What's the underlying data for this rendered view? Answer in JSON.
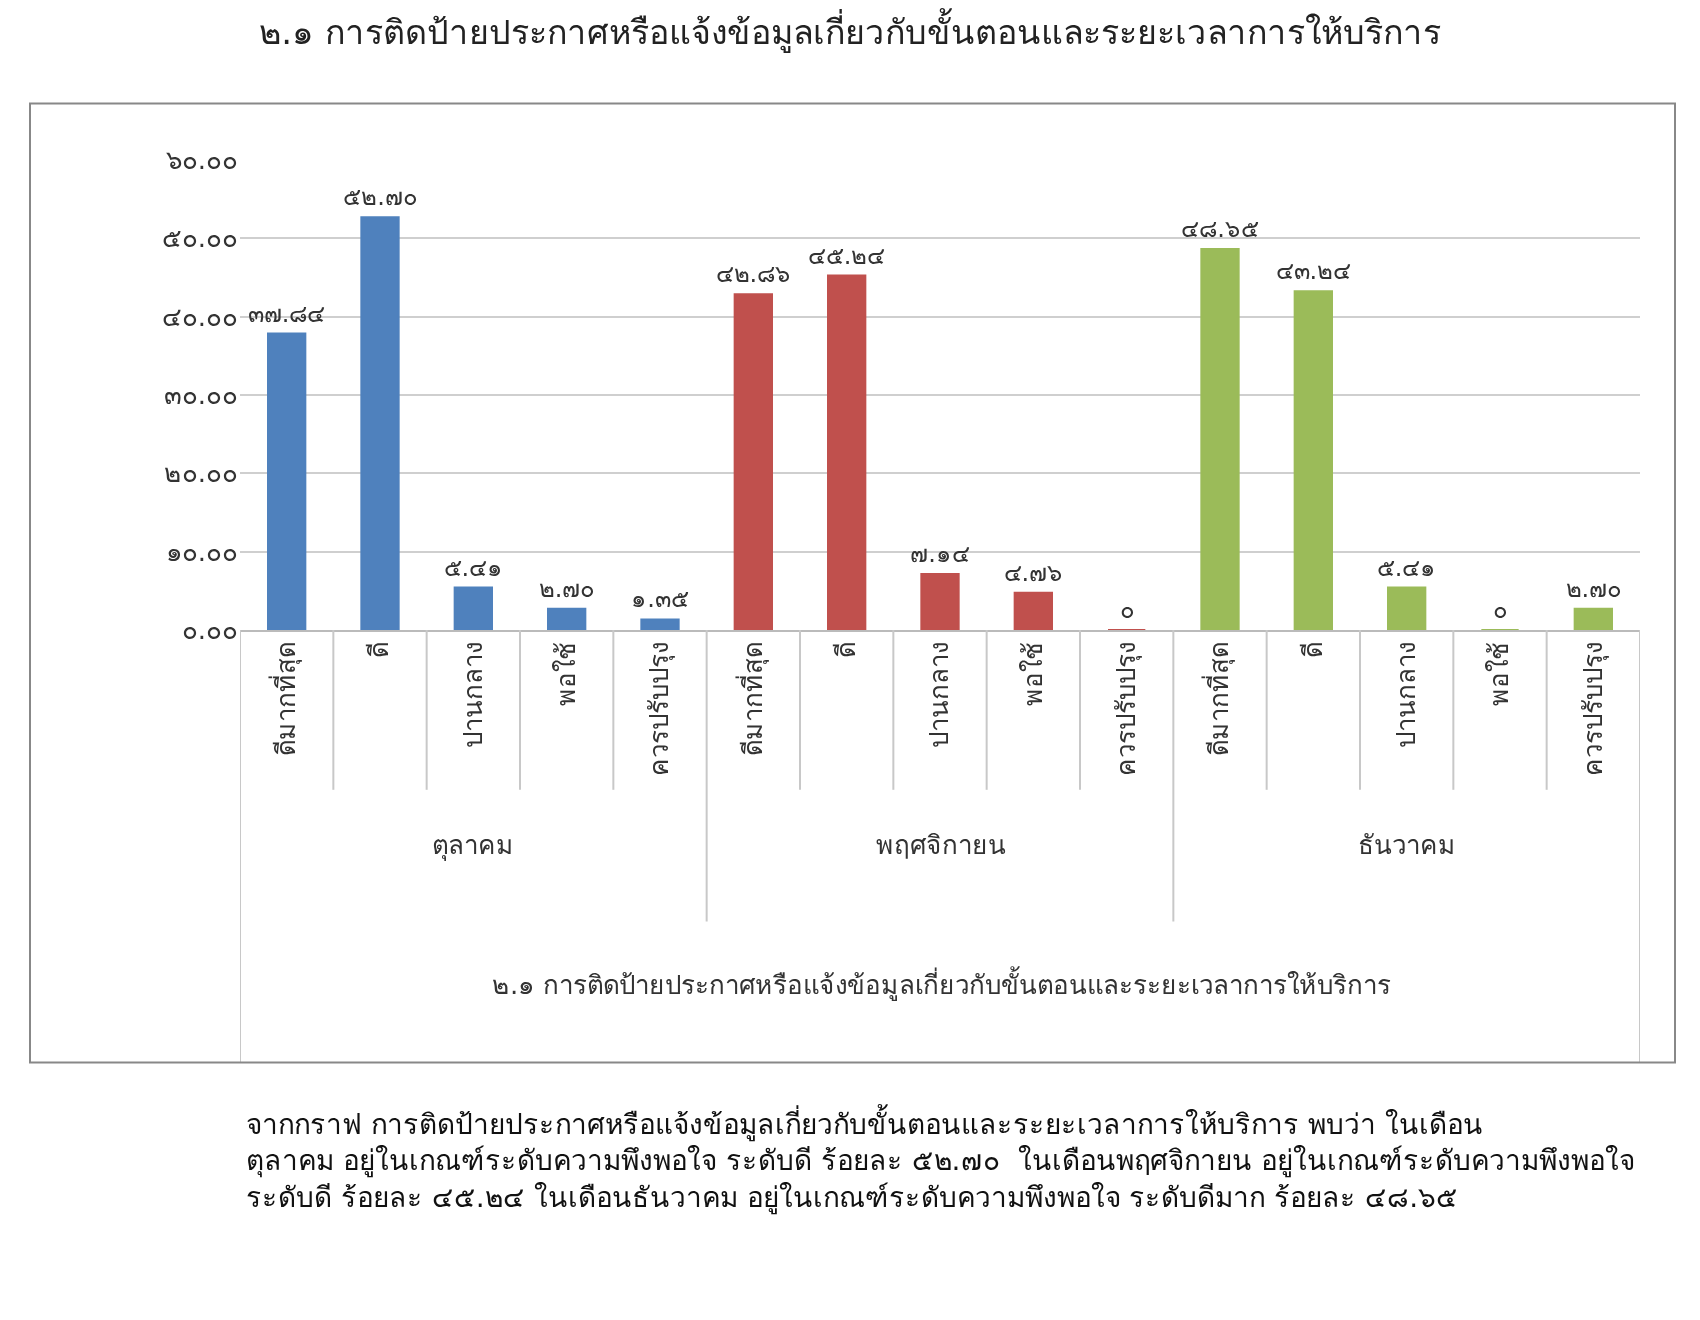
{
  "chart_data": {
    "type": "bar",
    "title": "๒.๑ การติดป้ายประกาศหรือแจ้งข้อมูลเกี่ยวกับขั้นตอนและระยะเวลาการให้บริการ",
    "categories": [
      "ดีมากที่สุด",
      "ดี",
      "ปานกลาง",
      "พอใช้",
      "ควรปรับปรุง",
      "ดีมากที่สุด",
      "ดี",
      "ปานกลาง",
      "พอใช้",
      "ควรปรับปรุง",
      "ดีมากที่สุด",
      "ดี",
      "ปานกลาง",
      "พอใช้",
      "ควรปรับปรุง"
    ],
    "series": [
      {
        "color": "#4f81bd",
        "values": [
          37.84,
          52.7,
          5.41,
          2.7,
          1.35,
          null,
          null,
          null,
          null,
          null,
          null,
          null,
          null,
          null,
          null
        ],
        "value_labels": [
          "๓๗.๘๔",
          "๕๒.๗๐",
          "๕.๔๑",
          "๒.๗๐",
          "๑.๓๕",
          null,
          null,
          null,
          null,
          null,
          null,
          null,
          null,
          null,
          null
        ]
      },
      {
        "color": "#c0504d",
        "values": [
          null,
          null,
          null,
          null,
          null,
          42.86,
          45.24,
          7.14,
          4.76,
          0,
          null,
          null,
          null,
          null,
          null
        ],
        "value_labels": [
          null,
          null,
          null,
          null,
          null,
          "๔๒.๘๖",
          "๔๕.๒๔",
          "๗.๑๔",
          "๔.๗๖",
          "๐",
          null,
          null,
          null,
          null,
          null
        ]
      },
      {
        "color": "#9bbb59",
        "values": [
          null,
          null,
          null,
          null,
          null,
          null,
          null,
          null,
          null,
          null,
          48.65,
          43.24,
          5.41,
          0,
          2.7
        ],
        "value_labels": [
          null,
          null,
          null,
          null,
          null,
          null,
          null,
          null,
          null,
          null,
          "๔๘.๖๕",
          "๔๓.๒๔",
          "๕.๔๑",
          "๐",
          "๒.๗๐"
        ]
      }
    ],
    "ylim": [
      0,
      60
    ],
    "yticks": [
      {
        "value": 0,
        "label": "๐.๐๐"
      },
      {
        "value": 10,
        "label": "๑๐.๐๐"
      },
      {
        "value": 20,
        "label": "๒๐.๐๐"
      },
      {
        "value": 30,
        "label": "๓๐.๐๐"
      },
      {
        "value": 40,
        "label": "๔๐.๐๐"
      },
      {
        "value": 50,
        "label": "๕๐.๐๐"
      },
      {
        "value": 60,
        "label": "๖๐.๐๐"
      }
    ],
    "grid": "y",
    "annotations": [
      "ตุลาคม",
      "พฤศจิกายน",
      "ธันวาคม",
      "๒.๑ การติดป้ายประกาศหรือแจ้งข้อมูลเกี่ยวกับขั้นตอนและระยะเวลาการให้บริการ",
      "จากกราฟ การติดป้ายประกาศหรือแจ้งข้อมูลเกี่ยวกับขั้นตอนและระยะเวลาการให้บริการ พบว่า ในเดือน\nตุลาคม อยู่ในเกณฑ์ระดับความพึงพอใจ ระดับดี ร้อยละ ๕๒.๗๐  ในเดือนพฤศจิกายน อยู่ในเกณฑ์ระดับความพึงพอใจ\nระดับดี ร้อยละ ๔๕.๒๔ ในเดือนธันวาคม อยู่ในเกณฑ์ระดับความพึงพอใจ ระดับดีมาก ร้อยละ ๔๘.๖๕"
    ]
  }
}
